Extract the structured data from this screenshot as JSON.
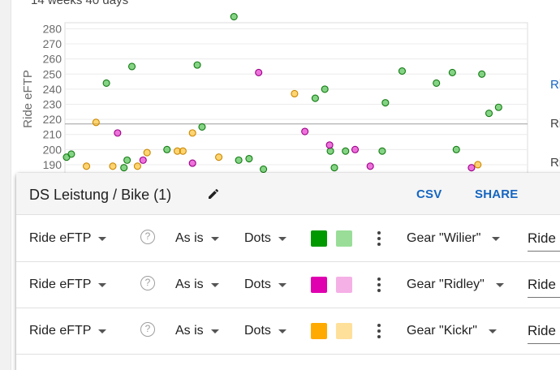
{
  "page": {
    "top_text": "14 weeks 40 days"
  },
  "side_links": [
    {
      "label": "Ri",
      "color": "#1565c0"
    },
    {
      "label": "Ri",
      "color": "#424242"
    },
    {
      "label": "Ri",
      "color": "#424242"
    }
  ],
  "chart_data": {
    "type": "scatter",
    "ylabel": "Ride eFTP",
    "ylim": [
      183,
      284
    ],
    "yticks": [
      190,
      200,
      210,
      220,
      230,
      240,
      250,
      260,
      270,
      280
    ],
    "reference_line": 217,
    "x_range": [
      0,
      560
    ],
    "series": [
      {
        "color": "#20b020",
        "points": [
          [
            0,
            195
          ],
          [
            6,
            197
          ],
          [
            50,
            244
          ],
          [
            72,
            188
          ],
          [
            76,
            193
          ],
          [
            82,
            255
          ],
          [
            126,
            200
          ],
          [
            164,
            256
          ],
          [
            170,
            215
          ],
          [
            210,
            288
          ],
          [
            216,
            193
          ],
          [
            229,
            194
          ],
          [
            247,
            187
          ],
          [
            312,
            234
          ],
          [
            324,
            240
          ],
          [
            331,
            199
          ],
          [
            336,
            188
          ],
          [
            350,
            199
          ],
          [
            396,
            199
          ],
          [
            400,
            231
          ],
          [
            421,
            252
          ],
          [
            464,
            244
          ],
          [
            484,
            251
          ],
          [
            489,
            200
          ],
          [
            521,
            250
          ],
          [
            530,
            224
          ],
          [
            542,
            228
          ]
        ]
      },
      {
        "color": "#e000c0",
        "points": [
          [
            64,
            211
          ],
          [
            96,
            193
          ],
          [
            158,
            191
          ],
          [
            241,
            251
          ],
          [
            299,
            212
          ],
          [
            330,
            203
          ],
          [
            362,
            200
          ],
          [
            381,
            189
          ],
          [
            508,
            188
          ]
        ]
      },
      {
        "color": "#ffb300",
        "points": [
          [
            25,
            189
          ],
          [
            37,
            218
          ],
          [
            58,
            189
          ],
          [
            89,
            189
          ],
          [
            101,
            198
          ],
          [
            139,
            199
          ],
          [
            146,
            199
          ],
          [
            158,
            211
          ],
          [
            191,
            195
          ],
          [
            286,
            237
          ],
          [
            516,
            190
          ]
        ]
      }
    ]
  },
  "dialog": {
    "title": "DS Leistung / Bike (1)",
    "csv_label": "CSV",
    "share_label": "SHARE",
    "rows": [
      {
        "field": "Ride eFTP",
        "help": "?",
        "transform": "As is",
        "style": "Dots",
        "color_main": "#009900",
        "color_light": "#99dd99",
        "filter": "Gear \"Wilier\"",
        "axis": "Ride eFTP"
      },
      {
        "field": "Ride eFTP",
        "help": "?",
        "transform": "As is",
        "style": "Dots",
        "color_main": "#e000b0",
        "color_light": "#f5b0e6",
        "filter": "Gear \"Ridley\"",
        "axis": "Ride eFTP"
      },
      {
        "field": "Ride eFTP",
        "help": "?",
        "transform": "As is",
        "style": "Dots",
        "color_main": "#ffaa00",
        "color_light": "#ffe09a",
        "filter": "Gear \"Kickr\"",
        "axis": "Ride eFTP"
      }
    ]
  }
}
